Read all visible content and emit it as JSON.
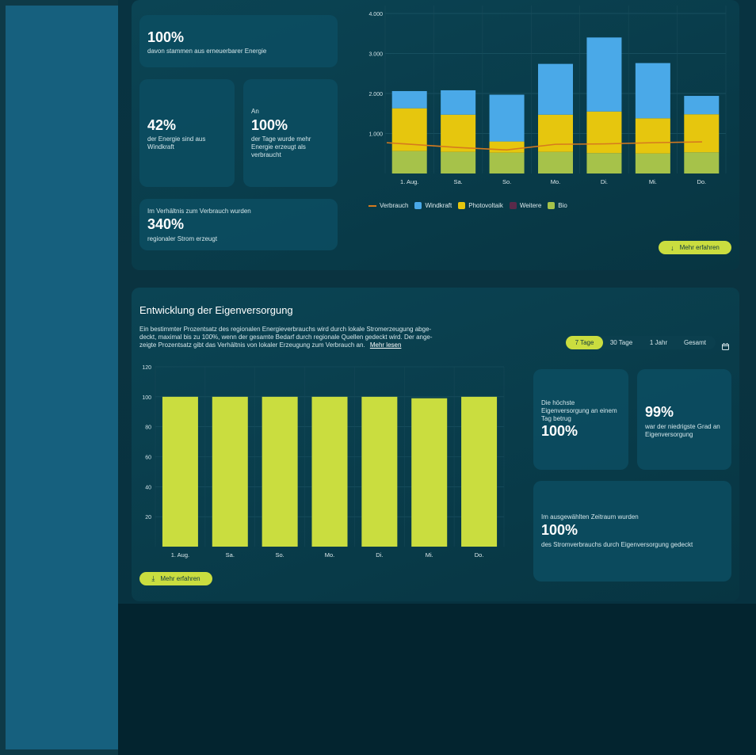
{
  "stats_top": {
    "renewable": {
      "value": "100%",
      "text": "davon stammen aus erneuerbarer Energie"
    },
    "wind": {
      "value": "42%",
      "text": "der Energie sind aus Windkraft"
    },
    "days": {
      "pre": "An",
      "value": "100%",
      "text": "der Tage wurde mehr Energie erzeugt als verbraucht"
    },
    "ratio": {
      "pre": "Im Verhältnis zum Verbrauch wurden",
      "value": "340%",
      "text": "regionaler Strom erzeugt"
    }
  },
  "energy_chart": {
    "legend": [
      {
        "label": "Verbrauch",
        "type": "line",
        "color": "#d67a1e"
      },
      {
        "label": "Windkraft",
        "type": "box",
        "color": "#4aa9e8"
      },
      {
        "label": "Photovoltaik",
        "type": "box",
        "color": "#e6c60e"
      },
      {
        "label": "Weitere",
        "type": "box",
        "color": "#5a2a4a"
      },
      {
        "label": "Bio",
        "type": "box",
        "color": "#a6c24a"
      }
    ],
    "more_button": "Mehr erfahren"
  },
  "selfsupply": {
    "title": "Entwicklung der Eigenversorgung",
    "desc1": "Ein bestimmter Prozentsatz des regionalen Energieverbrauchs wird durch lokale Stromerzeugung abge-",
    "desc2": "deckt, maximal bis zu 100%, wenn der gesamte Bedarf durch regionale Quellen gedeckt wird. Der ange-",
    "desc3": "zeigte Prozentsatz gibt das Verhältnis von lokaler Erzeugung zum Verbrauch an.",
    "read_more": "Mehr lesen",
    "periods": [
      "7 Tage",
      "30 Tage",
      "1 Jahr",
      "Gesamt"
    ],
    "active_period": "7 Tage",
    "stat_high": {
      "pre": "Die höchste Eigenversorgung an einem Tag betrug",
      "value": "100%"
    },
    "stat_low": {
      "value": "99%",
      "text": "war der niedrigste Grad an Eigenversorgung"
    },
    "stat_period": {
      "pre": "Im ausgewählten Zeitraum wurden",
      "value": "100%",
      "text": "des Stromverbrauchs durch Eigenversorgung gedeckt"
    },
    "more_button": "Mehr erfahren"
  },
  "chart_data": [
    {
      "type": "bar",
      "stacked": true,
      "categories": [
        "1. Aug.",
        "Sa.",
        "So.",
        "Mo.",
        "Di.",
        "Mi.",
        "Do."
      ],
      "yticks": [
        "1.000",
        "2.000",
        "3.000",
        "4.000"
      ],
      "ylim": [
        0,
        4000
      ],
      "series": [
        {
          "name": "Bio",
          "color": "#a6c24a",
          "values": [
            560,
            540,
            520,
            540,
            510,
            500,
            530
          ]
        },
        {
          "name": "Photovoltaik",
          "color": "#e6c60e",
          "values": [
            1070,
            930,
            280,
            930,
            1040,
            880,
            950
          ]
        },
        {
          "name": "Weitere",
          "color": "#5a2a4a",
          "values": [
            0,
            0,
            0,
            0,
            0,
            0,
            0
          ]
        },
        {
          "name": "Windkraft",
          "color": "#4aa9e8",
          "values": [
            430,
            610,
            1170,
            1270,
            1850,
            1380,
            460
          ]
        },
        {
          "name": "Verbrauch",
          "type": "line",
          "color": "#d67a1e",
          "values": [
            770,
            650,
            590,
            730,
            740,
            770,
            790
          ]
        }
      ],
      "grid": true,
      "legend": "bottom-left"
    },
    {
      "type": "bar",
      "categories": [
        "1. Aug.",
        "Sa.",
        "So.",
        "Mo.",
        "Di.",
        "Mi.",
        "Do."
      ],
      "values": [
        100,
        100,
        100,
        100,
        100,
        99,
        100
      ],
      "yticks": [
        "20",
        "40",
        "60",
        "80",
        "100",
        "120"
      ],
      "ylim": [
        0,
        120
      ],
      "color": "#cadd3f",
      "grid": true
    }
  ]
}
